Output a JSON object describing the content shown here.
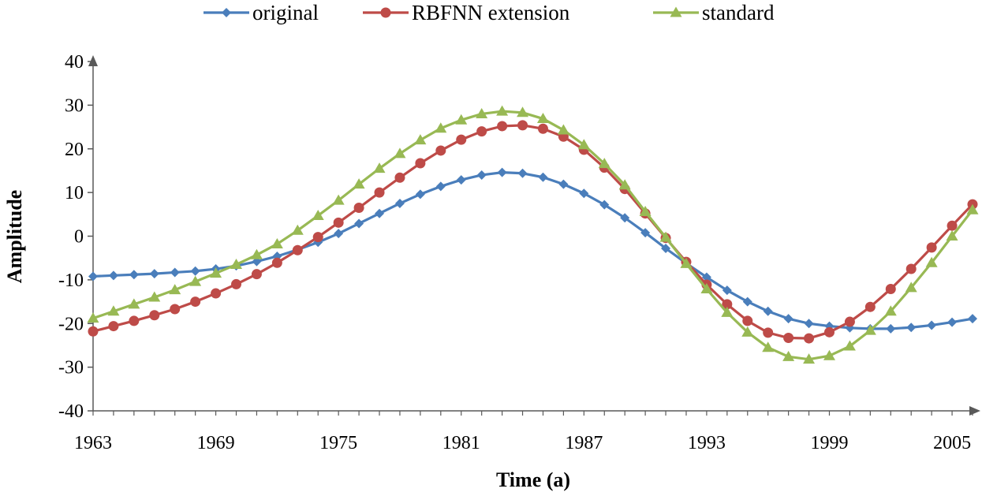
{
  "chart_data": {
    "type": "line",
    "title": "",
    "xlabel": "Time (a)",
    "ylabel": "Amplitude",
    "xlim": [
      1963,
      2006
    ],
    "ylim": [
      -40,
      40
    ],
    "xticks": [
      1963,
      1969,
      1975,
      1981,
      1987,
      1993,
      1999,
      2005
    ],
    "yticks": [
      -40,
      -30,
      -20,
      -10,
      0,
      10,
      20,
      30,
      40
    ],
    "grid": false,
    "legend": "top",
    "x": [
      1963,
      1964,
      1965,
      1966,
      1967,
      1968,
      1969,
      1970,
      1971,
      1972,
      1973,
      1974,
      1975,
      1976,
      1977,
      1978,
      1979,
      1980,
      1981,
      1982,
      1983,
      1984,
      1985,
      1986,
      1987,
      1988,
      1989,
      1990,
      1991,
      1992,
      1993,
      1994,
      1995,
      1996,
      1997,
      1998,
      1999,
      2000,
      2001,
      2002,
      2003,
      2004,
      2005,
      2006
    ],
    "series": [
      {
        "name": "original",
        "color": "#4a7ebb",
        "marker": "diamond",
        "values": [
          -9.2,
          -9.0,
          -8.8,
          -8.6,
          -8.3,
          -8.0,
          -7.5,
          -6.8,
          -5.8,
          -4.6,
          -3.1,
          -1.4,
          0.6,
          2.9,
          5.2,
          7.5,
          9.6,
          11.4,
          12.9,
          14.0,
          14.6,
          14.4,
          13.5,
          11.9,
          9.8,
          7.2,
          4.2,
          0.8,
          -2.8,
          -6.2,
          -9.4,
          -12.4,
          -15.0,
          -17.2,
          -18.9,
          -20.0,
          -20.6,
          -21.0,
          -21.2,
          -21.2,
          -20.9,
          -20.4,
          -19.7,
          -18.9
        ]
      },
      {
        "name": "RBFNN extension",
        "color": "#be4b48",
        "marker": "circle",
        "values": [
          -21.8,
          -20.6,
          -19.4,
          -18.1,
          -16.7,
          -15.0,
          -13.1,
          -11.0,
          -8.7,
          -6.1,
          -3.2,
          -0.2,
          3.1,
          6.5,
          10.0,
          13.4,
          16.7,
          19.6,
          22.1,
          24.0,
          25.2,
          25.4,
          24.6,
          22.8,
          19.8,
          15.7,
          10.8,
          5.2,
          -0.4,
          -5.9,
          -11.1,
          -15.6,
          -19.4,
          -22.1,
          -23.3,
          -23.4,
          -22.0,
          -19.6,
          -16.2,
          -12.1,
          -7.5,
          -2.6,
          2.4,
          7.3
        ]
      },
      {
        "name": "standard",
        "color": "#98b954",
        "marker": "triangle",
        "values": [
          -18.8,
          -17.2,
          -15.6,
          -14.0,
          -12.3,
          -10.4,
          -8.5,
          -6.5,
          -4.3,
          -1.8,
          1.3,
          4.7,
          8.2,
          11.9,
          15.5,
          18.9,
          22.0,
          24.7,
          26.6,
          28.0,
          28.6,
          28.3,
          26.9,
          24.3,
          20.9,
          16.6,
          11.7,
          5.6,
          -0.3,
          -6.3,
          -12.1,
          -17.5,
          -22.0,
          -25.5,
          -27.6,
          -28.2,
          -27.4,
          -25.2,
          -21.6,
          -17.2,
          -11.8,
          -6.1,
          0.0,
          6.0
        ]
      }
    ]
  }
}
